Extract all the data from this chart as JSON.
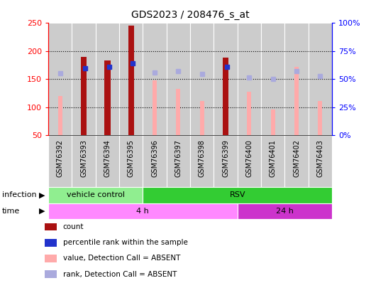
{
  "title": "GDS2023 / 208476_s_at",
  "samples": [
    "GSM76392",
    "GSM76393",
    "GSM76394",
    "GSM76395",
    "GSM76396",
    "GSM76397",
    "GSM76398",
    "GSM76399",
    "GSM76400",
    "GSM76401",
    "GSM76402",
    "GSM76403"
  ],
  "count_values": [
    null,
    190,
    183,
    246,
    null,
    null,
    null,
    188,
    null,
    null,
    null,
    null
  ],
  "rank_values": [
    null,
    170,
    172,
    178,
    null,
    null,
    null,
    172,
    null,
    null,
    null,
    null
  ],
  "absent_value": [
    120,
    null,
    null,
    null,
    148,
    133,
    111,
    null,
    128,
    96,
    172,
    111
  ],
  "absent_rank": [
    160,
    null,
    null,
    null,
    162,
    164,
    159,
    null,
    153,
    150,
    165,
    155
  ],
  "infection_groups": [
    {
      "label": "vehicle control",
      "start": 0,
      "end": 4,
      "color": "#90ee90"
    },
    {
      "label": "RSV",
      "start": 4,
      "end": 12,
      "color": "#33cc33"
    }
  ],
  "time_groups": [
    {
      "label": "4 h",
      "start": 0,
      "end": 8,
      "color": "#ff88ff"
    },
    {
      "label": "24 h",
      "start": 8,
      "end": 12,
      "color": "#cc33cc"
    }
  ],
  "ylim_left": [
    50,
    250
  ],
  "ylim_right": [
    0,
    100
  ],
  "yticks_left": [
    50,
    100,
    150,
    200,
    250
  ],
  "yticks_right": [
    0,
    25,
    50,
    75,
    100
  ],
  "ytick_labels_right": [
    "0%",
    "25%",
    "50%",
    "75%",
    "100%"
  ],
  "grid_values": [
    100,
    150,
    200
  ],
  "color_count": "#aa1111",
  "color_rank": "#2233cc",
  "color_absent_value": "#ffaaaa",
  "color_absent_rank": "#aaaadd",
  "legend_items": [
    {
      "color": "#aa1111",
      "label": "count"
    },
    {
      "color": "#2233cc",
      "label": "percentile rank within the sample"
    },
    {
      "color": "#ffaaaa",
      "label": "value, Detection Call = ABSENT"
    },
    {
      "color": "#aaaadd",
      "label": "rank, Detection Call = ABSENT"
    }
  ],
  "infection_label": "infection",
  "time_label": "time",
  "col_bg_color": "#cccccc",
  "plot_bg_color": "#ffffff"
}
